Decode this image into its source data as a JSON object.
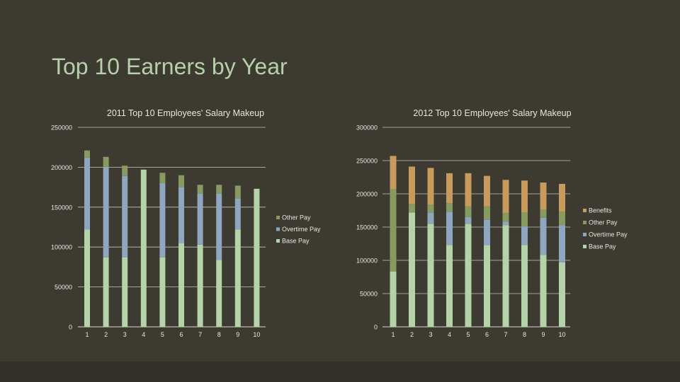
{
  "slide": {
    "title": "Top 10 Earners by Year"
  },
  "colors": {
    "background": "#3d3a32",
    "title": "#b6d1a9",
    "base_pay": "#b4d3a8",
    "overtime_pay": "#8fa6bf",
    "other_pay": "#879a60",
    "benefits": "#c79a5e"
  },
  "chart_data": [
    {
      "type": "bar",
      "stacked": true,
      "title": "2011 Top 10 Employees' Salary Makeup",
      "categories": [
        "1",
        "2",
        "3",
        "4",
        "5",
        "6",
        "7",
        "8",
        "9",
        "10"
      ],
      "ylim": [
        0,
        250000
      ],
      "yticks": [
        "0",
        "50000",
        "100000",
        "150000",
        "200000",
        "250000"
      ],
      "grid": true,
      "legend": "right",
      "series": [
        {
          "name": "Base Pay",
          "values": [
            122000,
            87000,
            87000,
            197000,
            87000,
            105000,
            103000,
            84000,
            122000,
            173000
          ]
        },
        {
          "name": "Overtime Pay",
          "values": [
            90000,
            113000,
            102000,
            0,
            93000,
            70000,
            64000,
            83000,
            39000,
            0
          ]
        },
        {
          "name": "Other Pay",
          "values": [
            9000,
            13000,
            13000,
            0,
            13000,
            15000,
            11000,
            11000,
            16000,
            0
          ]
        }
      ]
    },
    {
      "type": "bar",
      "stacked": true,
      "title": "2012 Top 10 Employees' Salary Makeup",
      "categories": [
        "1",
        "2",
        "3",
        "4",
        "5",
        "6",
        "7",
        "8",
        "9",
        "10"
      ],
      "ylim": [
        0,
        300000
      ],
      "yticks": [
        "0",
        "50000",
        "100000",
        "150000",
        "200000",
        "250000",
        "300000"
      ],
      "grid": true,
      "legend": "right",
      "series": [
        {
          "name": "Base Pay",
          "values": [
            83000,
            172000,
            155000,
            123000,
            155000,
            123000,
            153000,
            123000,
            108000,
            97000
          ]
        },
        {
          "name": "Overtime Pay",
          "values": [
            0,
            0,
            17000,
            50000,
            10000,
            38000,
            5000,
            28000,
            56000,
            56000
          ]
        },
        {
          "name": "Other Pay",
          "values": [
            124000,
            13000,
            12000,
            13000,
            16000,
            20000,
            13000,
            21000,
            12000,
            20000
          ]
        },
        {
          "name": "Benefits",
          "values": [
            50000,
            56000,
            55000,
            45000,
            50000,
            46000,
            50000,
            48000,
            41000,
            42000
          ]
        }
      ]
    }
  ]
}
